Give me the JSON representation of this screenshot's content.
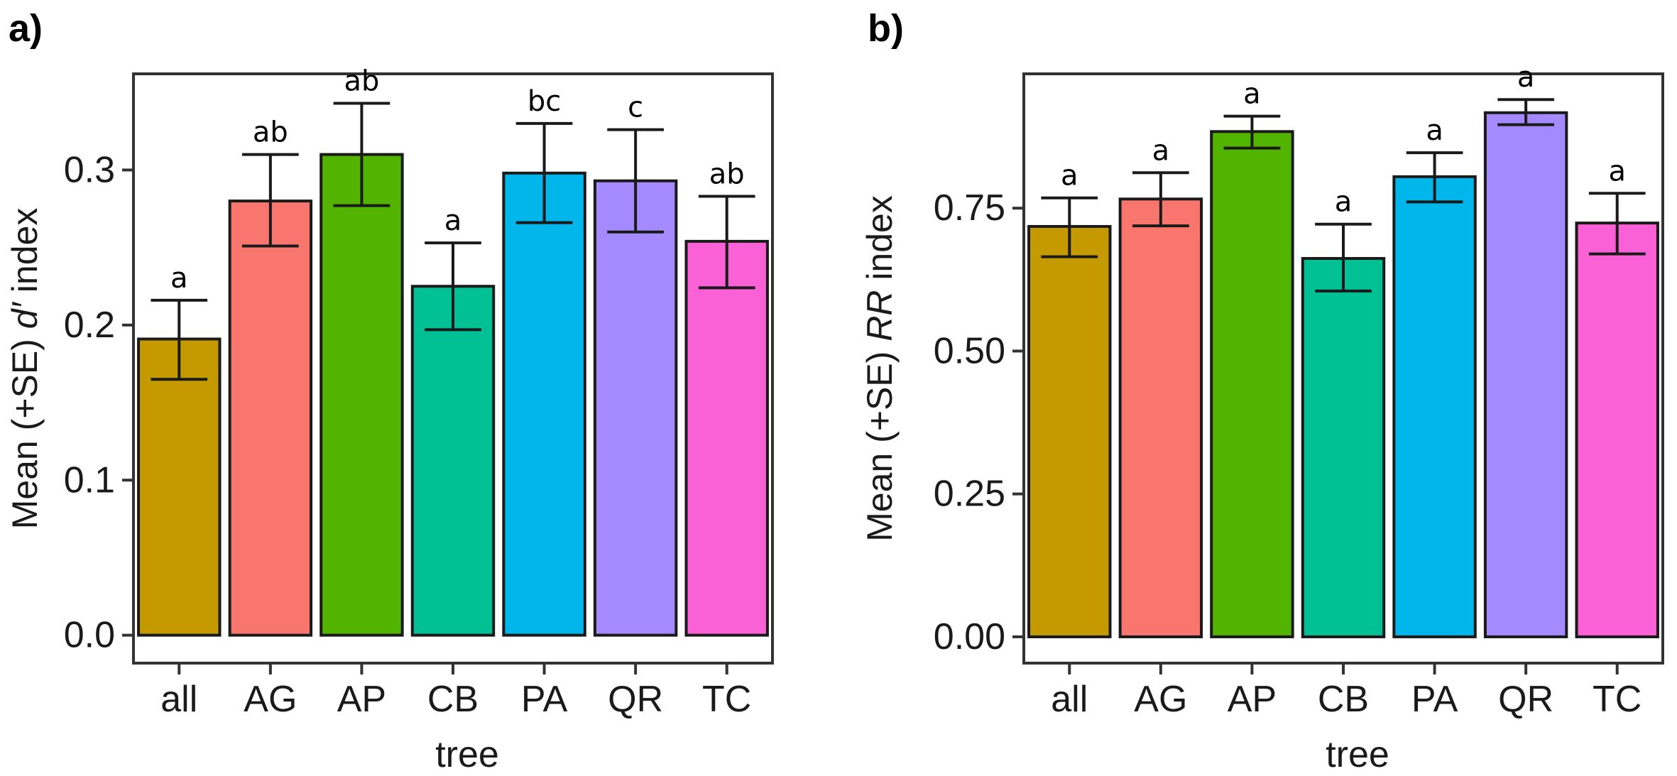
{
  "chart_data": [
    {
      "type": "bar",
      "panel_label": "a)",
      "categories": [
        "all",
        "AG",
        "AP",
        "CB",
        "PA",
        "QR",
        "TC"
      ],
      "values": [
        0.191,
        0.28,
        0.31,
        0.225,
        0.298,
        0.293,
        0.254
      ],
      "error_lower": [
        0.165,
        0.251,
        0.277,
        0.197,
        0.266,
        0.26,
        0.224
      ],
      "error_upper": [
        0.216,
        0.31,
        0.343,
        0.253,
        0.33,
        0.326,
        0.283
      ],
      "significance_letters": [
        "a",
        "ab",
        "ab",
        "a",
        "bc",
        "c",
        "ab"
      ],
      "colors": [
        "#C49A00",
        "#F8766D",
        "#53B400",
        "#00C094",
        "#00B6EB",
        "#A58AFF",
        "#FB61D7"
      ],
      "xlabel": "tree",
      "ylabel": "Mean (+SE) d′ index",
      "ylabel_parts": {
        "prefix": "Mean (+SE) ",
        "italic": "d′",
        "suffix": " index"
      },
      "ylim": [
        -0.018,
        0.362
      ],
      "yticks": [
        0.0,
        0.1,
        0.2,
        0.3
      ],
      "ytick_labels": [
        "0.0",
        "0.1",
        "0.2",
        "0.3"
      ],
      "grid": false
    },
    {
      "type": "bar",
      "panel_label": "b)",
      "categories": [
        "all",
        "AG",
        "AP",
        "CB",
        "PA",
        "QR",
        "TC"
      ],
      "values": [
        0.718,
        0.766,
        0.884,
        0.662,
        0.805,
        0.917,
        0.724
      ],
      "error_lower": [
        0.665,
        0.719,
        0.855,
        0.605,
        0.761,
        0.896,
        0.67
      ],
      "error_upper": [
        0.768,
        0.812,
        0.911,
        0.722,
        0.847,
        0.94,
        0.776
      ],
      "significance_letters": [
        "a",
        "a",
        "a",
        "a",
        "a",
        "a",
        "a"
      ],
      "colors": [
        "#C49A00",
        "#F8766D",
        "#53B400",
        "#00C094",
        "#00B6EB",
        "#A58AFF",
        "#FB61D7"
      ],
      "xlabel": "tree",
      "ylabel": "Mean (+SE) RR index",
      "ylabel_parts": {
        "prefix": "Mean (+SE) ",
        "italic": "RR",
        "suffix": " index"
      },
      "ylim": [
        -0.046,
        0.985
      ],
      "yticks": [
        0.0,
        0.25,
        0.5,
        0.75
      ],
      "ytick_labels": [
        "0.00",
        "0.25",
        "0.50",
        "0.75"
      ],
      "grid": false
    }
  ]
}
